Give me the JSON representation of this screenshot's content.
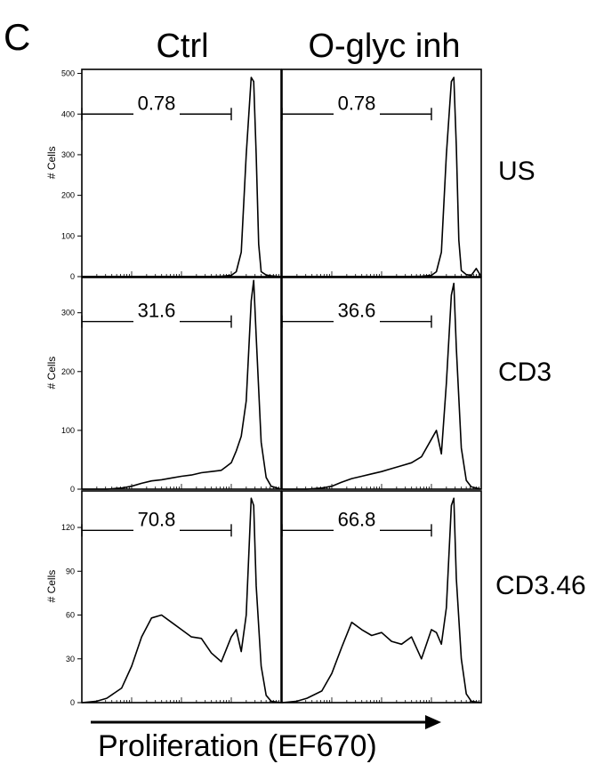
{
  "panel_letter": "C",
  "column_labels": [
    "Ctrl",
    "O-glyc inh"
  ],
  "row_labels": [
    "US",
    "CD3",
    "CD3.46"
  ],
  "x_axis_label": "Proliferation (EF670)",
  "y_axis_label": "# Cells",
  "colors": {
    "line": "#000000",
    "background": "#ffffff"
  },
  "chart_data": [
    {
      "type": "line",
      "row": "US",
      "column": "Ctrl",
      "ylim": [
        0,
        510
      ],
      "yticks": [
        0,
        100,
        200,
        300,
        400,
        500
      ],
      "xlim": [
        0,
        4
      ],
      "gate": {
        "label": "0.78",
        "from": 0,
        "to": 3.0,
        "y": 400
      },
      "series": [
        {
          "x": [
            0.0,
            0.5,
            1.0,
            1.5,
            2.0,
            2.5,
            2.8,
            3.0,
            3.1,
            3.2,
            3.3,
            3.4,
            3.45,
            3.5,
            3.55,
            3.6,
            3.7,
            3.8,
            3.9,
            4.0
          ],
          "values": [
            0,
            0,
            0,
            0,
            0,
            0,
            1,
            3,
            12,
            60,
            300,
            490,
            480,
            300,
            80,
            12,
            4,
            2,
            1,
            0
          ]
        }
      ]
    },
    {
      "type": "line",
      "row": "US",
      "column": "O-glyc inh",
      "ylim": [
        0,
        510
      ],
      "yticks": [
        0,
        100,
        200,
        300,
        400,
        500
      ],
      "xlim": [
        0,
        4
      ],
      "gate": {
        "label": "0.78",
        "from": 0,
        "to": 3.0,
        "y": 400
      },
      "series": [
        {
          "x": [
            0.0,
            0.5,
            1.0,
            1.5,
            2.0,
            2.5,
            2.8,
            3.0,
            3.1,
            3.2,
            3.3,
            3.4,
            3.45,
            3.5,
            3.55,
            3.6,
            3.7,
            3.8,
            3.9,
            4.0
          ],
          "values": [
            0,
            0,
            0,
            0,
            0,
            0,
            1,
            3,
            12,
            60,
            300,
            480,
            490,
            320,
            90,
            15,
            5,
            3,
            20,
            0
          ]
        }
      ]
    },
    {
      "type": "line",
      "row": "CD3",
      "column": "Ctrl",
      "ylim": [
        0,
        360
      ],
      "yticks": [
        0,
        100,
        200,
        300
      ],
      "xlim": [
        0,
        4
      ],
      "gate": {
        "label": "31.6",
        "from": 0,
        "to": 3.0,
        "y": 285
      },
      "series": [
        {
          "x": [
            0.0,
            0.5,
            0.8,
            1.0,
            1.2,
            1.4,
            1.6,
            1.8,
            2.0,
            2.2,
            2.4,
            2.6,
            2.8,
            3.0,
            3.1,
            3.2,
            3.3,
            3.4,
            3.45,
            3.5,
            3.6,
            3.7,
            3.8,
            4.0
          ],
          "values": [
            0,
            0,
            2,
            5,
            10,
            14,
            16,
            19,
            22,
            24,
            28,
            30,
            32,
            45,
            65,
            90,
            150,
            320,
            355,
            260,
            80,
            20,
            5,
            0
          ]
        }
      ]
    },
    {
      "type": "line",
      "row": "CD3",
      "column": "O-glyc inh",
      "ylim": [
        0,
        360
      ],
      "yticks": [
        0,
        100,
        200,
        300
      ],
      "xlim": [
        0,
        4
      ],
      "gate": {
        "label": "36.6",
        "from": 0,
        "to": 3.0,
        "y": 285
      },
      "series": [
        {
          "x": [
            0.0,
            0.5,
            0.8,
            1.0,
            1.2,
            1.4,
            1.6,
            1.8,
            2.0,
            2.2,
            2.4,
            2.6,
            2.8,
            3.0,
            3.1,
            3.2,
            3.3,
            3.4,
            3.45,
            3.5,
            3.6,
            3.7,
            3.8,
            4.0
          ],
          "values": [
            0,
            0,
            2,
            5,
            12,
            18,
            22,
            26,
            30,
            35,
            40,
            45,
            55,
            85,
            100,
            60,
            180,
            330,
            350,
            240,
            70,
            15,
            4,
            0
          ]
        }
      ]
    },
    {
      "type": "line",
      "row": "CD3.46",
      "column": "Ctrl",
      "ylim": [
        0,
        145
      ],
      "yticks": [
        0,
        30,
        60,
        90,
        120
      ],
      "xlim": [
        0,
        4
      ],
      "gate": {
        "label": "70.8",
        "from": 0,
        "to": 3.0,
        "y": 118
      },
      "series": [
        {
          "x": [
            0.0,
            0.3,
            0.5,
            0.8,
            1.0,
            1.2,
            1.4,
            1.6,
            1.8,
            2.0,
            2.2,
            2.4,
            2.6,
            2.8,
            3.0,
            3.1,
            3.2,
            3.3,
            3.4,
            3.45,
            3.5,
            3.6,
            3.7,
            3.8,
            4.0
          ],
          "values": [
            0,
            1,
            3,
            10,
            25,
            45,
            58,
            60,
            55,
            50,
            45,
            44,
            34,
            28,
            45,
            50,
            35,
            60,
            140,
            135,
            80,
            25,
            5,
            1,
            0
          ]
        }
      ]
    },
    {
      "type": "line",
      "row": "CD3.46",
      "column": "O-glyc inh",
      "ylim": [
        0,
        145
      ],
      "yticks": [
        0,
        30,
        60,
        90,
        120
      ],
      "xlim": [
        0,
        4
      ],
      "gate": {
        "label": "66.8",
        "from": 0,
        "to": 3.0,
        "y": 118
      },
      "series": [
        {
          "x": [
            0.0,
            0.3,
            0.5,
            0.8,
            1.0,
            1.2,
            1.4,
            1.6,
            1.8,
            2.0,
            2.2,
            2.4,
            2.6,
            2.8,
            3.0,
            3.1,
            3.2,
            3.3,
            3.4,
            3.45,
            3.5,
            3.6,
            3.7,
            3.8,
            4.0
          ],
          "values": [
            0,
            1,
            3,
            8,
            20,
            38,
            55,
            50,
            46,
            48,
            42,
            40,
            45,
            30,
            50,
            48,
            40,
            65,
            135,
            140,
            85,
            30,
            6,
            1,
            0
          ]
        }
      ]
    }
  ]
}
